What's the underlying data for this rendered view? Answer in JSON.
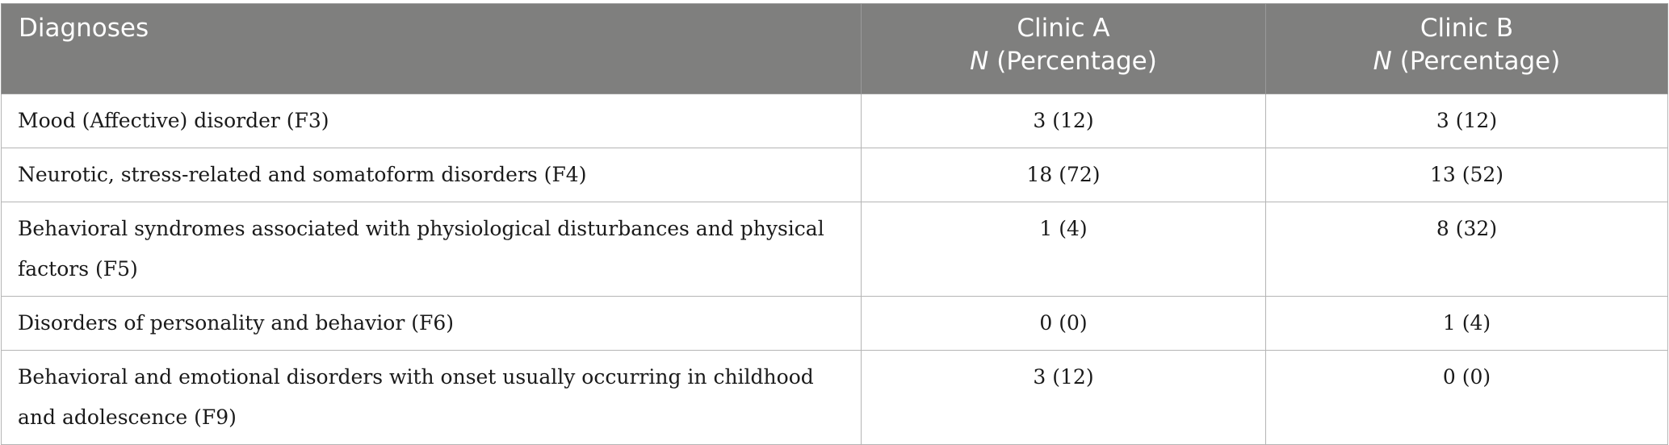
{
  "table": {
    "headers": {
      "diagnoses": "Diagnoses",
      "clinic_a": {
        "name": "Clinic A",
        "n": "N",
        "unit": " (Percentage)"
      },
      "clinic_b": {
        "name": "Clinic B",
        "n": "N",
        "unit": " (Percentage)"
      }
    },
    "rows": [
      {
        "diagnosis": "Mood (Affective) disorder (F3)",
        "clinic_a": "3 (12)",
        "clinic_b": "3 (12)"
      },
      {
        "diagnosis": "Neurotic, stress-related and somatoform disorders (F4)",
        "clinic_a": "18 (72)",
        "clinic_b": "13 (52)"
      },
      {
        "diagnosis": "Behavioral syndromes associated with physiological disturbances and physical factors (F5)",
        "clinic_a": "1 (4)",
        "clinic_b": "8 (32)"
      },
      {
        "diagnosis": "Disorders of personality and behavior (F6)",
        "clinic_a": "0 (0)",
        "clinic_b": "1 (4)"
      },
      {
        "diagnosis": "Behavioral and emotional disorders with onset usually occurring in childhood and adolescence (F9)",
        "clinic_a": "3 (12)",
        "clinic_b": "0 (0)"
      }
    ],
    "colors": {
      "header_bg": "#7f7f7e",
      "header_text": "#ffffff",
      "border": "#b5b5b5"
    }
  }
}
